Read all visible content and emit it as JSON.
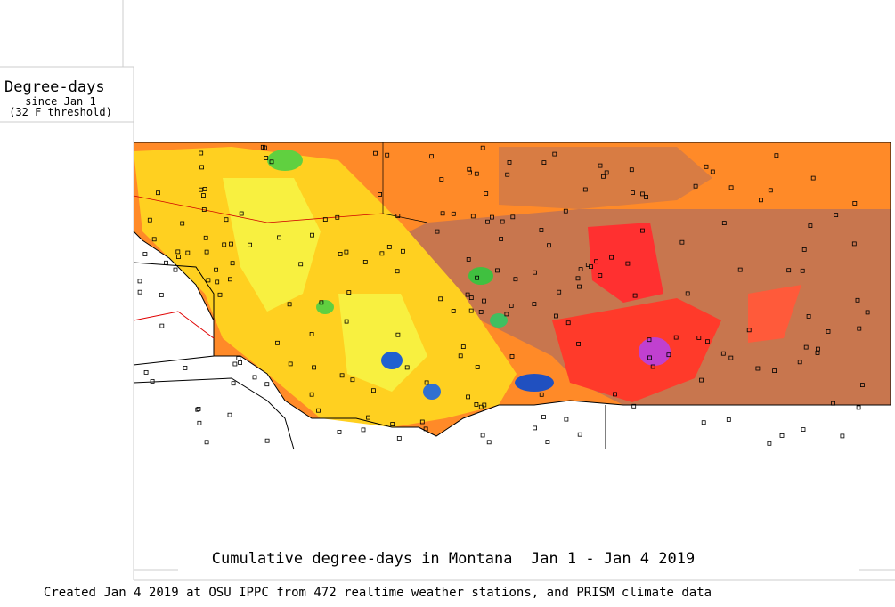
{
  "legend": {
    "title": "Degree-days",
    "subtitle": "since Jan 1",
    "threshold": "(32 F threshold)"
  },
  "map": {
    "title": "Cumulative degree-days in Montana  Jan 1 - Jan 4 2019"
  },
  "footer": {
    "credit": "Created Jan 4 2019 at OSU IPPC from 472 realtime weather stations, and PRISM climate data"
  }
}
